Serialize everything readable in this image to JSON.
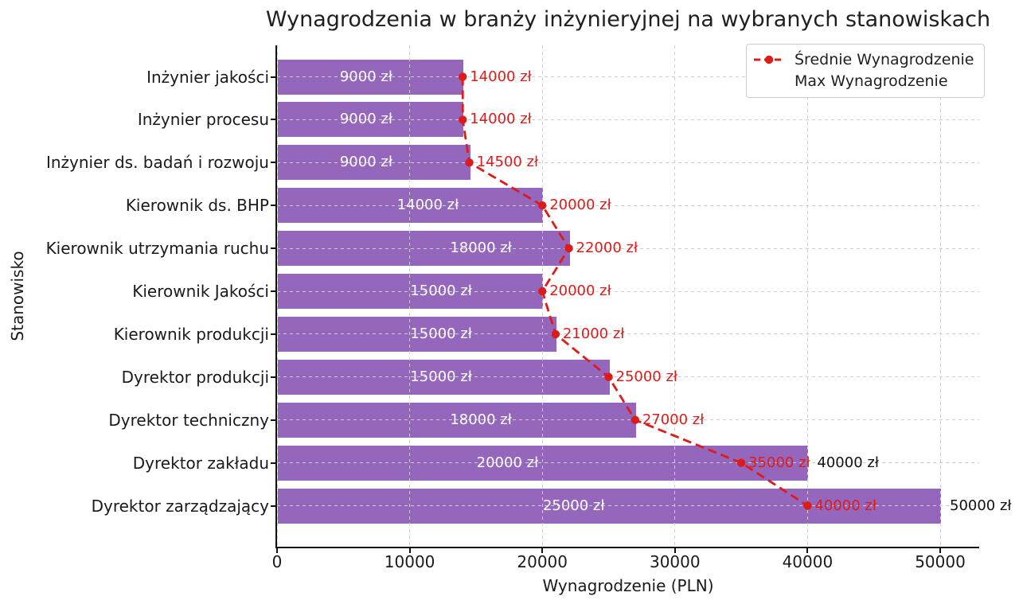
{
  "figure": {
    "title": "Wynagrodzenia w branży inżynieryjnej na wybranych stanowiskach",
    "xlabel": "Wynagrodzenie (PLN)",
    "ylabel": "Stanowisko"
  },
  "chart_data": {
    "type": "bar",
    "orientation": "horizontal",
    "title": "Wynagrodzenia w branży inżynieryjnej na wybranych stanowiskach",
    "xlabel": "Wynagrodzenie (PLN)",
    "ylabel": "Stanowisko",
    "xlim": [
      0,
      53000
    ],
    "xticks": [
      0,
      10000,
      20000,
      30000,
      40000,
      50000
    ],
    "xtick_labels": [
      "0",
      "10000",
      "20000",
      "30000",
      "40000",
      "50000"
    ],
    "grid": true,
    "grid_style": "dashed",
    "legend_position": "upper right",
    "legend": [
      {
        "label": "Średnie Wynagrodzenie",
        "marker": "dashed-line-with-dot",
        "color": "#dd1c1a"
      },
      {
        "label": "Max Wynagrodzenie",
        "marker": "rect",
        "color": "#9467bd"
      }
    ],
    "categories": [
      "Inżynier jakości",
      "Inżynier procesu",
      "Inżynier ds. badań i rozwoju",
      "Kierownik ds. BHP",
      "Kierownik utrzymania ruchu",
      "Kierownik Jakości",
      "Kierownik produkcji",
      "Dyrektor produkcji",
      "Dyrektor techniczny",
      "Dyrektor zakładu",
      "Dyrektor zarządzający"
    ],
    "series": [
      {
        "name": "Max Wynagrodzenie",
        "type": "bar",
        "color": "#9467bd",
        "values": [
          14000,
          14000,
          14500,
          20000,
          22000,
          20000,
          21000,
          25000,
          27000,
          40000,
          50000
        ],
        "end_labels": [
          "",
          "",
          "",
          "",
          "",
          "",
          "",
          "",
          "",
          "40000 zł",
          "50000 zł"
        ]
      },
      {
        "name": "Średnie Wynagrodzenie",
        "type": "line",
        "line_style": "dashed",
        "marker": "circle",
        "color": "#dd1c1a",
        "values": [
          14000,
          14000,
          14500,
          20000,
          22000,
          20000,
          21000,
          25000,
          27000,
          35000,
          40000
        ],
        "point_labels": [
          "14000 zł",
          "14000 zł",
          "14500 zł",
          "20000 zł",
          "22000 zł",
          "20000 zł",
          "21000 zł",
          "25000 zł",
          "27000 zł",
          "35000 zł",
          "40000 zł"
        ]
      },
      {
        "name": "Wartości wewnątrz słupków",
        "type": "bar-inner-labels",
        "color": "#ffffff",
        "values": [
          9000,
          9000,
          9000,
          14000,
          18000,
          15000,
          15000,
          15000,
          18000,
          20000,
          25000
        ],
        "labels": [
          "9000 zł",
          "9000 zł",
          "9000 zł",
          "14000 zł",
          "18000 zł",
          "15000 zł",
          "15000 zł",
          "15000 zł",
          "18000 zł",
          "20000 zł",
          "25000 zł"
        ]
      }
    ]
  }
}
